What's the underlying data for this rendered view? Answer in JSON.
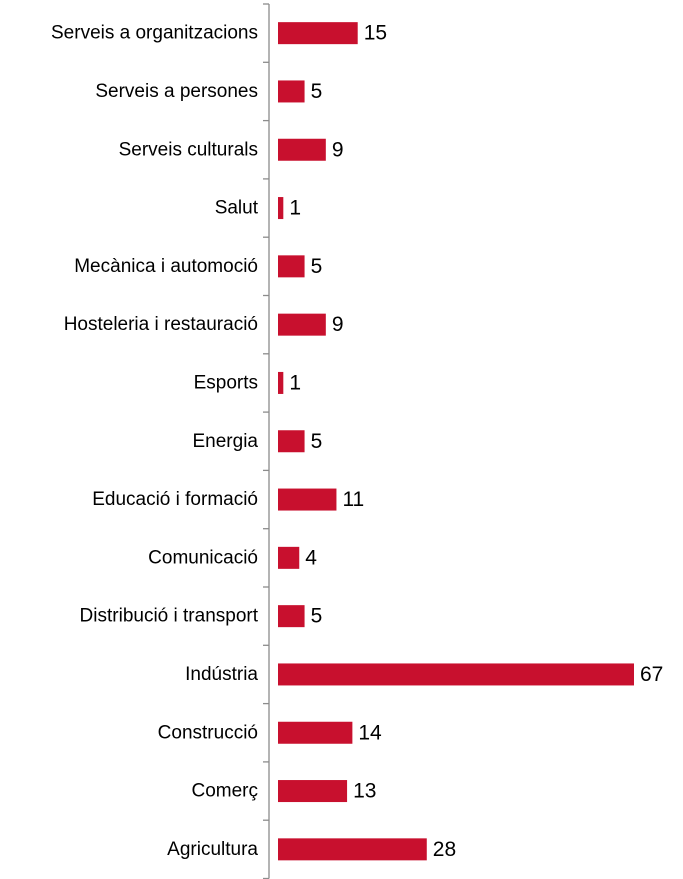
{
  "chart_data": {
    "type": "bar",
    "orientation": "horizontal",
    "categories": [
      "Serveis a organitzacions",
      "Serveis a persones",
      "Serveis culturals",
      "Salut",
      "Mecànica i automoció",
      "Hosteleria i restauració",
      "Esports",
      "Energia",
      "Educació i formació",
      "Comunicació",
      "Distribució i transport",
      "Indústria",
      "Construcció",
      "Comerç",
      "Agricultura"
    ],
    "values": [
      15,
      5,
      9,
      1,
      5,
      9,
      1,
      5,
      11,
      4,
      5,
      67,
      14,
      13,
      28
    ],
    "data_labels": [
      "15",
      "5",
      "9",
      "1",
      "5",
      "9",
      "1",
      "5",
      "11",
      "4",
      "5",
      "67",
      "14",
      "13",
      "28"
    ],
    "bar_color": "#c8102e",
    "axis_color": "#8c8c8c",
    "xlim": [
      0,
      67
    ],
    "grid": false,
    "legend": "none",
    "title": "",
    "xlabel": "",
    "ylabel": ""
  }
}
